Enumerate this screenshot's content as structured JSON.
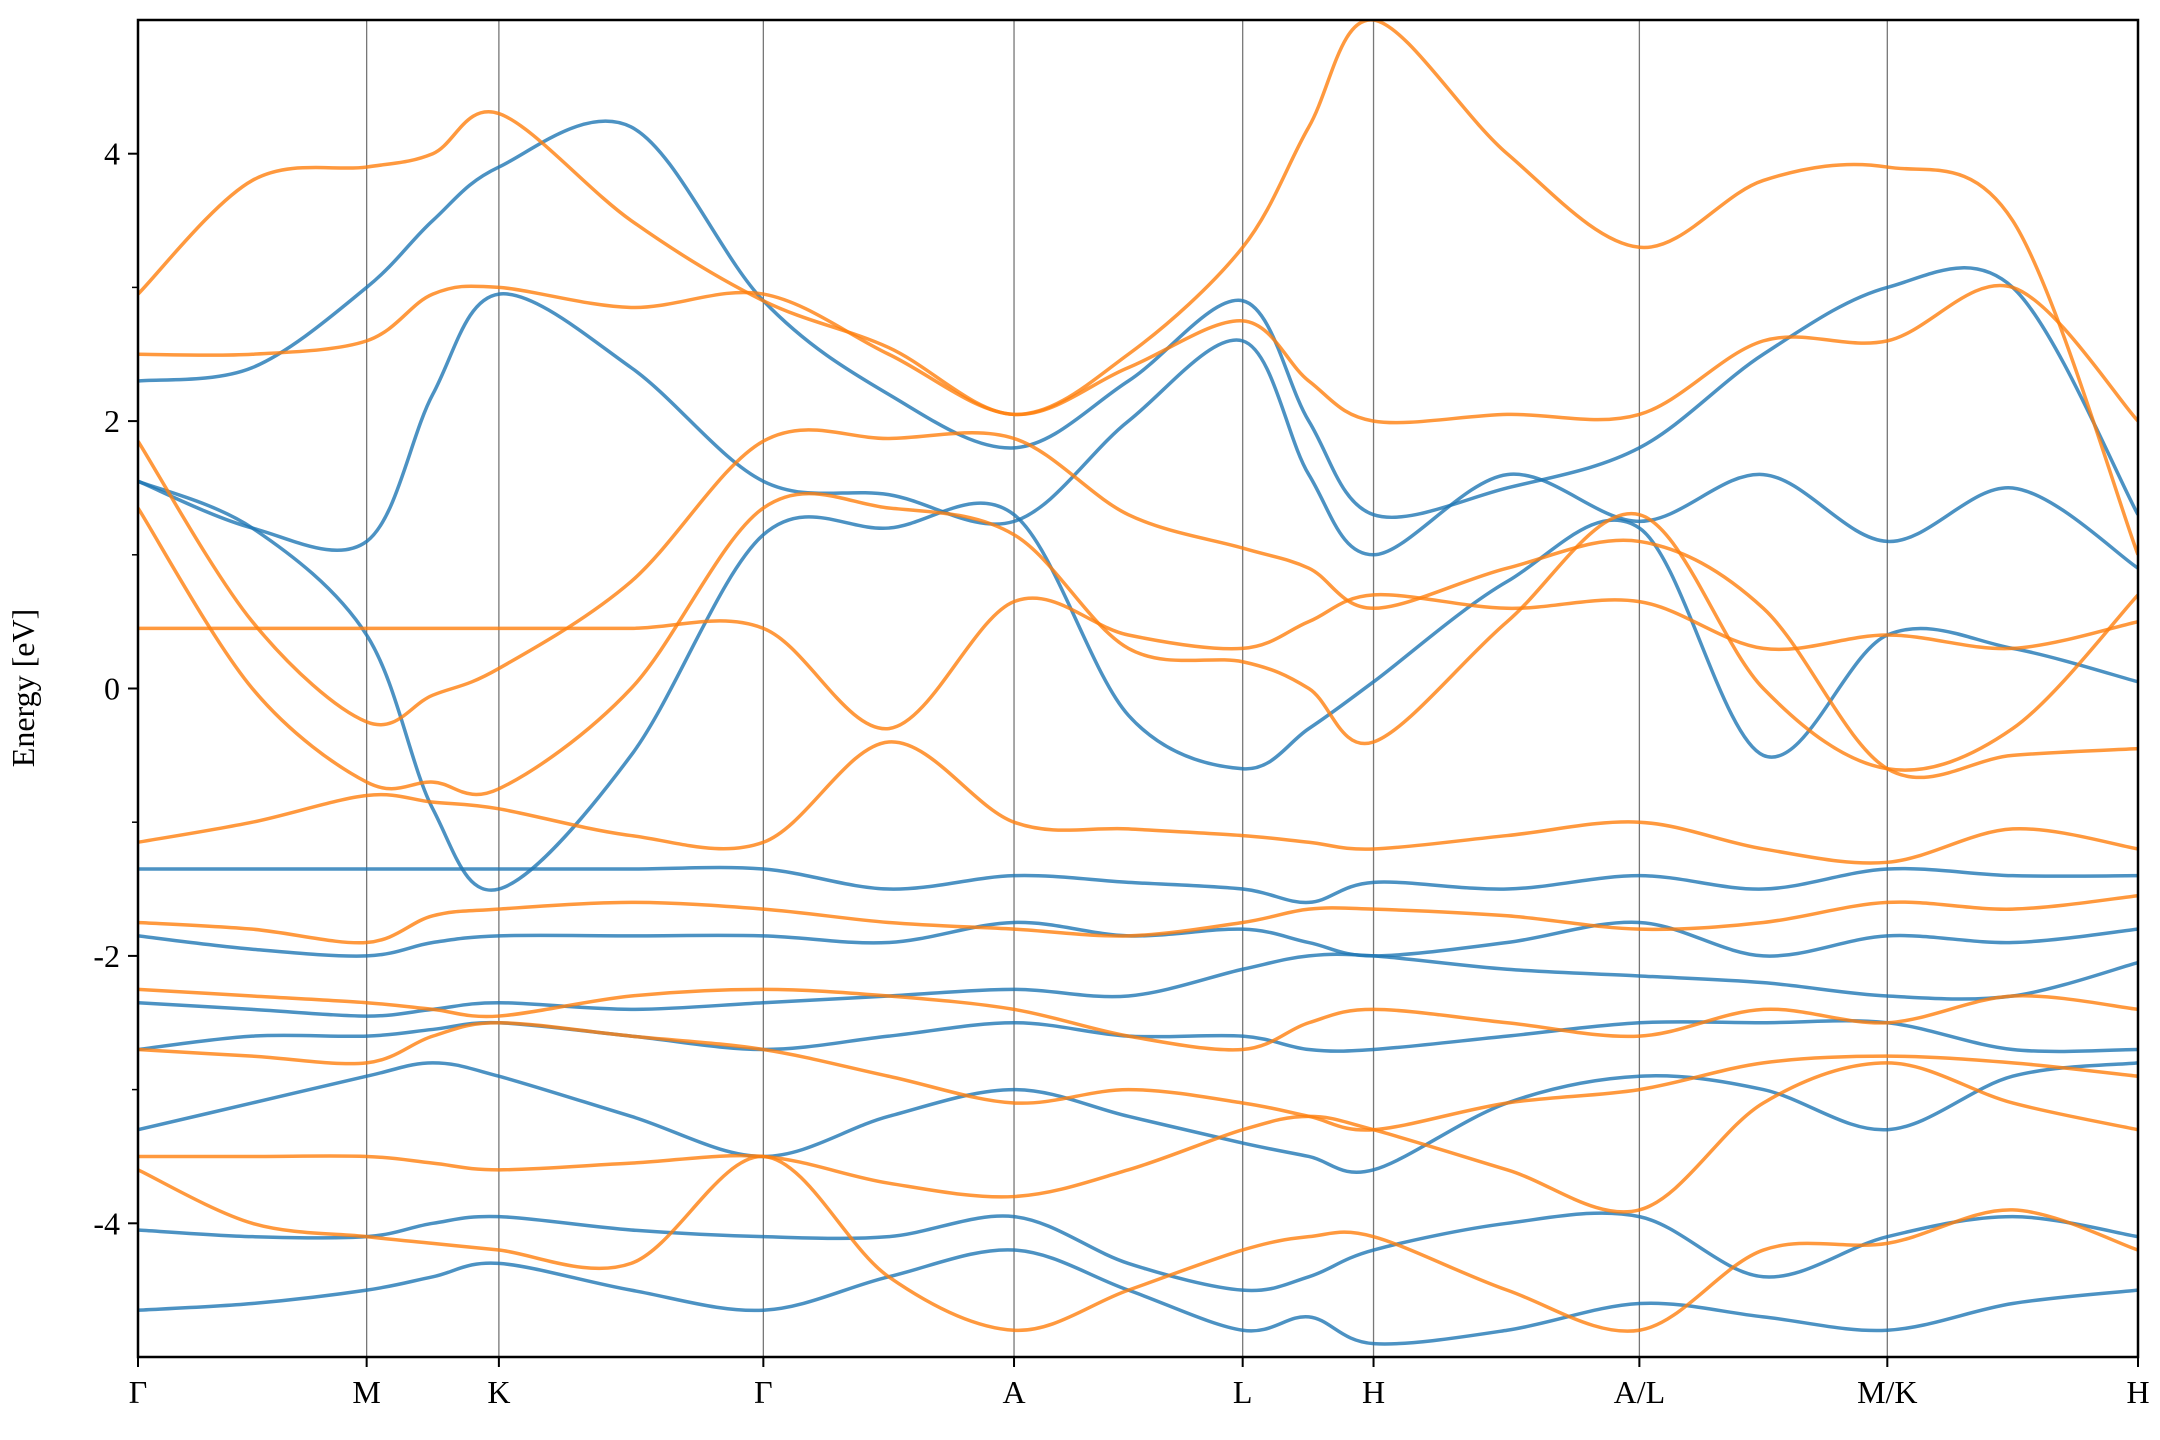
{
  "chart_data": {
    "type": "line",
    "ylabel": "Energy [eV]",
    "x": [
      0,
      0.83,
      1.66,
      2.14,
      2.62,
      3.58,
      4.54,
      5.45,
      6.36,
      7.19,
      8.02,
      8.5,
      8.97,
      9.94,
      10.9,
      11.8,
      12.7,
      13.61,
      14.52
    ],
    "xlim": [
      0,
      14.52
    ],
    "xticks": [
      {
        "value": 0,
        "label": "Γ"
      },
      {
        "value": 1.66,
        "label": "M"
      },
      {
        "value": 2.62,
        "label": "K"
      },
      {
        "value": 4.54,
        "label": "Γ"
      },
      {
        "value": 6.36,
        "label": "A"
      },
      {
        "value": 8.02,
        "label": "L"
      },
      {
        "value": 8.97,
        "label": "H"
      },
      {
        "value": 10.9,
        "label": "A/L"
      },
      {
        "value": 12.7,
        "label": "M/K"
      },
      {
        "value": 14.52,
        "label": "H"
      }
    ],
    "ylim": [
      -5,
      5
    ],
    "yticks": [
      -4,
      -2,
      0,
      2,
      4
    ],
    "yminorticks": [
      -3,
      -1,
      1,
      3
    ],
    "grid": true,
    "series": [
      {
        "color": "#1f77b4",
        "values": [
          -2.7,
          -2.6,
          -2.6,
          -2.55,
          -2.5,
          -2.6,
          -2.7,
          -2.6,
          -2.5,
          -2.6,
          -2.6,
          -2.7,
          -2.7,
          -2.6,
          -2.5,
          -2.5,
          -2.5,
          -2.7,
          -2.7
        ]
      },
      {
        "color": "#1f77b4",
        "values": [
          1.55,
          1.2,
          0.4,
          -0.9,
          -1.5,
          -0.5,
          1.15,
          1.2,
          1.3,
          -0.2,
          -0.6,
          -0.3,
          0.05,
          0.8,
          1.2,
          -0.5,
          0.4,
          0.3,
          0.05
        ]
      },
      {
        "color": "#1f77b4",
        "values": [
          2.3,
          2.4,
          3.0,
          3.5,
          3.9,
          4.2,
          2.9,
          2.2,
          1.8,
          2.3,
          2.9,
          2.0,
          1.3,
          1.5,
          1.8,
          2.5,
          3.0,
          3.0,
          1.3
        ]
      },
      {
        "color": "#1f77b4",
        "values": [
          1.55,
          1.2,
          1.1,
          2.2,
          2.95,
          2.4,
          1.55,
          1.45,
          1.25,
          2.0,
          2.6,
          1.6,
          1.0,
          1.6,
          1.25,
          1.6,
          1.1,
          1.5,
          0.9
        ]
      },
      {
        "color": "#1f77b4",
        "values": [
          -1.35,
          -1.35,
          -1.35,
          -1.35,
          -1.35,
          -1.35,
          -1.35,
          -1.5,
          -1.4,
          -1.45,
          -1.5,
          -1.6,
          -1.45,
          -1.5,
          -1.4,
          -1.5,
          -1.35,
          -1.4,
          -1.4
        ]
      },
      {
        "color": "#1f77b4",
        "values": [
          -1.85,
          -1.95,
          -2.0,
          -1.9,
          -1.85,
          -1.85,
          -1.85,
          -1.9,
          -1.75,
          -1.85,
          -1.8,
          -1.9,
          -2.0,
          -1.9,
          -1.75,
          -2.0,
          -1.85,
          -1.9,
          -1.8
        ]
      },
      {
        "color": "#1f77b4",
        "values": [
          -2.35,
          -2.4,
          -2.45,
          -2.4,
          -2.35,
          -2.4,
          -2.35,
          -2.3,
          -2.25,
          -2.3,
          -2.1,
          -2.0,
          -2.0,
          -2.1,
          -2.15,
          -2.2,
          -2.3,
          -2.3,
          -2.05
        ]
      },
      {
        "color": "#1f77b4",
        "values": [
          -3.3,
          -3.1,
          -2.9,
          -2.8,
          -2.9,
          -3.2,
          -3.5,
          -3.2,
          -3.0,
          -3.2,
          -3.4,
          -3.5,
          -3.6,
          -3.1,
          -2.9,
          -3.0,
          -3.3,
          -2.9,
          -2.8
        ]
      },
      {
        "color": "#1f77b4",
        "values": [
          -4.05,
          -4.1,
          -4.1,
          -4.0,
          -3.95,
          -4.05,
          -4.1,
          -4.1,
          -3.95,
          -4.3,
          -4.5,
          -4.4,
          -4.2,
          -4.0,
          -3.95,
          -4.4,
          -4.1,
          -3.95,
          -4.1
        ]
      },
      {
        "color": "#1f77b4",
        "values": [
          -4.65,
          -4.6,
          -4.5,
          -4.4,
          -4.3,
          -4.5,
          -4.65,
          -4.4,
          -4.2,
          -4.5,
          -4.8,
          -4.7,
          -4.9,
          -4.8,
          -4.6,
          -4.7,
          -4.8,
          -4.6,
          -4.5
        ]
      },
      {
        "color": "#ff7f0e",
        "values": [
          0.45,
          0.45,
          0.45,
          0.45,
          0.45,
          0.45,
          0.45,
          -0.3,
          0.65,
          0.4,
          0.3,
          0.5,
          0.7,
          0.6,
          0.65,
          0.3,
          0.4,
          0.3,
          0.5
        ]
      },
      {
        "color": "#ff7f0e",
        "values": [
          1.85,
          0.5,
          -0.25,
          -0.05,
          0.15,
          0.8,
          1.85,
          1.87,
          1.87,
          1.3,
          1.05,
          0.9,
          0.6,
          0.9,
          1.1,
          0.6,
          -0.6,
          -0.5,
          -0.45
        ]
      },
      {
        "color": "#ff7f0e",
        "values": [
          1.35,
          0.0,
          -0.7,
          -0.7,
          -0.75,
          0.0,
          1.35,
          1.35,
          1.15,
          0.3,
          0.2,
          0.0,
          -0.4,
          0.5,
          1.3,
          0.0,
          -0.6,
          -0.3,
          0.7
        ]
      },
      {
        "color": "#ff7f0e",
        "values": [
          2.5,
          2.5,
          2.6,
          2.95,
          3.0,
          2.85,
          2.95,
          2.5,
          2.05,
          2.4,
          2.75,
          2.3,
          2.0,
          2.05,
          2.05,
          2.6,
          2.6,
          3.0,
          2.0
        ]
      },
      {
        "color": "#ff7f0e",
        "values": [
          2.95,
          3.8,
          3.9,
          4.0,
          4.3,
          3.5,
          2.9,
          2.55,
          2.05,
          2.5,
          3.3,
          4.2,
          5.0,
          4.0,
          3.3,
          3.8,
          3.9,
          3.5,
          1.0
        ]
      },
      {
        "color": "#ff7f0e",
        "values": [
          -1.15,
          -1.0,
          -0.8,
          -0.85,
          -0.9,
          -1.1,
          -1.15,
          -0.4,
          -1.0,
          -1.05,
          -1.1,
          -1.15,
          -1.2,
          -1.1,
          -1.0,
          -1.2,
          -1.3,
          -1.05,
          -1.2
        ]
      },
      {
        "color": "#ff7f0e",
        "values": [
          -1.75,
          -1.8,
          -1.9,
          -1.7,
          -1.65,
          -1.6,
          -1.65,
          -1.75,
          -1.8,
          -1.85,
          -1.75,
          -1.65,
          -1.65,
          -1.7,
          -1.8,
          -1.75,
          -1.6,
          -1.65,
          -1.55
        ]
      },
      {
        "color": "#ff7f0e",
        "values": [
          -2.25,
          -2.3,
          -2.35,
          -2.4,
          -2.45,
          -2.3,
          -2.25,
          -2.3,
          -2.4,
          -2.6,
          -2.7,
          -2.5,
          -2.4,
          -2.5,
          -2.6,
          -2.4,
          -2.5,
          -2.3,
          -2.4
        ]
      },
      {
        "color": "#ff7f0e",
        "values": [
          -2.7,
          -2.75,
          -2.8,
          -2.6,
          -2.5,
          -2.6,
          -2.7,
          -2.9,
          -3.1,
          -3.0,
          -3.1,
          -3.2,
          -3.3,
          -3.1,
          -3.0,
          -2.8,
          -2.75,
          -2.8,
          -2.9
        ]
      },
      {
        "color": "#ff7f0e",
        "values": [
          -3.5,
          -3.5,
          -3.5,
          -3.55,
          -3.6,
          -3.55,
          -3.5,
          -3.7,
          -3.8,
          -3.6,
          -3.3,
          -3.2,
          -3.3,
          -3.6,
          -3.9,
          -3.1,
          -2.8,
          -3.1,
          -3.3
        ]
      },
      {
        "color": "#ff7f0e",
        "values": [
          -3.6,
          -4.0,
          -4.1,
          -4.15,
          -4.2,
          -4.3,
          -3.5,
          -4.4,
          -4.8,
          -4.5,
          -4.2,
          -4.1,
          -4.1,
          -4.5,
          -4.8,
          -4.2,
          -4.15,
          -3.9,
          -4.2
        ]
      }
    ]
  }
}
